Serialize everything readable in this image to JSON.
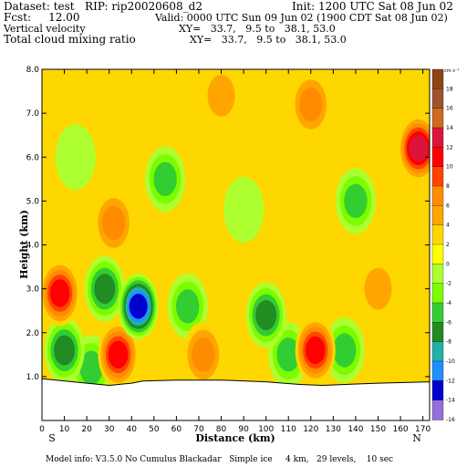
{
  "header": {
    "dataset": "Dataset: test   RIP: rip20020608_d2",
    "init": "Init: 1200 UTC Sat 08 Jun 02",
    "fcst": "Fcst:     12.00",
    "valid": "Valid: 0000 UTC Sun 09 Jun 02 (1900 CDT Sat 08 Jun 02)",
    "field1": "Vertical velocity",
    "xy1": "XY=   33.7,   9.5 to   38.1, 53.0",
    "field2": "Total cloud mixing ratio",
    "xy2": "XY=   33.7,   9.5 to   38.1, 53.0"
  },
  "footer": {
    "model_info": "Model info: V3.5.0 No Cumulus Blackadar   Simple ice     4 km,   29 levels,    10 sec"
  },
  "chart_data": {
    "type": "heatmap",
    "title": "Vertical velocity",
    "xlabel": "Distance (km)",
    "ylabel": "Height (km)",
    "x_ticks": [
      0,
      10,
      20,
      30,
      40,
      50,
      60,
      70,
      80,
      90,
      100,
      110,
      120,
      130,
      140,
      150,
      160,
      170
    ],
    "y_ticks": [
      1.0,
      2.0,
      3.0,
      4.0,
      5.0,
      6.0,
      7.0,
      8.0
    ],
    "y_tick_labels": [
      "1.0",
      "2.0",
      "3.0",
      "4.0",
      "5.0",
      "6.0",
      "7.0",
      "8.0"
    ],
    "xlim": [
      0,
      173
    ],
    "ylim": [
      0,
      8
    ],
    "left_end_label": "S",
    "right_end_label": "N",
    "colorbar_unit": "cm s⁻¹",
    "colorbar_levels": [
      18,
      16,
      14,
      12,
      10,
      8,
      6,
      4,
      2,
      0,
      -2,
      -4,
      -6,
      -8,
      -10,
      -12,
      -14,
      -16
    ],
    "colorbar_colors": [
      "#8b4513",
      "#a0522d",
      "#d2691e",
      "#dc143c",
      "#ff0000",
      "#ff4500",
      "#ff8c00",
      "#ffa500",
      "#ffd700",
      "#ffff00",
      "#adff2f",
      "#7cfc00",
      "#32cd32",
      "#228b22",
      "#20b2aa",
      "#1e90ff",
      "#0000cd",
      "#9370db"
    ],
    "terrain_km": [
      [
        0,
        0.95
      ],
      [
        20,
        0.85
      ],
      [
        30,
        0.8
      ],
      [
        40,
        0.85
      ],
      [
        45,
        0.9
      ],
      [
        60,
        0.92
      ],
      [
        80,
        0.92
      ],
      [
        100,
        0.88
      ],
      [
        115,
        0.82
      ],
      [
        125,
        0.8
      ],
      [
        150,
        0.85
      ],
      [
        173,
        0.88
      ]
    ],
    "features": [
      {
        "x": 8,
        "y": 2.9,
        "value": 10
      },
      {
        "x": 10,
        "y": 1.6,
        "value": -8
      },
      {
        "x": 22,
        "y": 1.2,
        "value": -6
      },
      {
        "x": 34,
        "y": 1.5,
        "value": 10
      },
      {
        "x": 43,
        "y": 2.6,
        "value": -14
      },
      {
        "x": 32,
        "y": 4.5,
        "value": 6
      },
      {
        "x": 28,
        "y": 3.0,
        "value": -8
      },
      {
        "x": 65,
        "y": 2.6,
        "value": -6
      },
      {
        "x": 72,
        "y": 1.5,
        "value": 6
      },
      {
        "x": 100,
        "y": 2.4,
        "value": -8
      },
      {
        "x": 110,
        "y": 1.5,
        "value": -6
      },
      {
        "x": 122,
        "y": 1.6,
        "value": 10
      },
      {
        "x": 135,
        "y": 1.6,
        "value": -6
      },
      {
        "x": 120,
        "y": 7.2,
        "value": 6
      },
      {
        "x": 168,
        "y": 6.2,
        "value": 12
      },
      {
        "x": 80,
        "y": 7.4,
        "value": 4
      },
      {
        "x": 150,
        "y": 3.0,
        "value": 4
      },
      {
        "x": 55,
        "y": 5.5,
        "value": -6
      },
      {
        "x": 140,
        "y": 5.0,
        "value": -6
      },
      {
        "x": 90,
        "y": 4.8,
        "value": -2
      },
      {
        "x": 15,
        "y": 6.0,
        "value": -2
      },
      {
        "x": 170,
        "y": 2.0,
        "value": 2
      }
    ]
  }
}
